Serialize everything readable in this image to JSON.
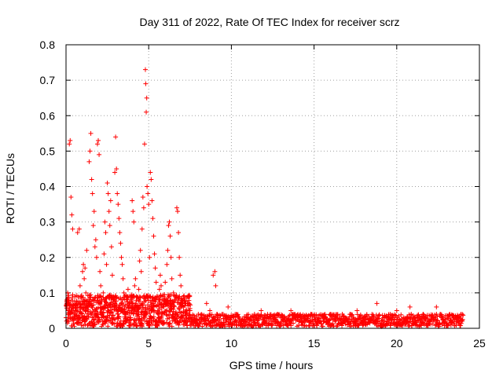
{
  "chart_data": {
    "type": "scatter",
    "title": "Day 311 of 2022, Rate Of TEC Index for receiver scrz",
    "xlabel": "GPS time / hours",
    "ylabel": "ROTI / TECUs",
    "xlim": [
      0,
      25
    ],
    "ylim": [
      0,
      0.8
    ],
    "x_ticks": [
      0,
      5,
      10,
      15,
      20,
      25
    ],
    "y_ticks": [
      0,
      0.1,
      0.2,
      0.3,
      0.4,
      0.5,
      0.6,
      0.7,
      0.8
    ],
    "x_tick_labels": [
      "0",
      "5",
      "10",
      "15",
      "20",
      "25"
    ],
    "y_tick_labels": [
      "0",
      "0.1",
      "0.2",
      "0.3",
      "0.4",
      "0.5",
      "0.6",
      "0.7",
      "0.8"
    ],
    "grid": true,
    "marker": "+",
    "color": "#ff0000",
    "series": [
      {
        "name": "ROTI",
        "points": [
          [
            0.0,
            0.03
          ],
          [
            0.05,
            0.08
          ],
          [
            0.1,
            0.1
          ],
          [
            0.15,
            0.05
          ],
          [
            0.2,
            0.52
          ],
          [
            0.25,
            0.53
          ],
          [
            0.3,
            0.37
          ],
          [
            0.35,
            0.32
          ],
          [
            0.4,
            0.28
          ],
          [
            0.45,
            0.06
          ],
          [
            0.5,
            0.04
          ],
          [
            0.55,
            0.09
          ],
          [
            0.6,
            0.05
          ],
          [
            0.7,
            0.27
          ],
          [
            0.75,
            0.07
          ],
          [
            0.8,
            0.28
          ],
          [
            0.85,
            0.12
          ],
          [
            0.9,
            0.09
          ],
          [
            1.0,
            0.16
          ],
          [
            1.05,
            0.18
          ],
          [
            1.1,
            0.14
          ],
          [
            1.15,
            0.17
          ],
          [
            1.2,
            0.1
          ],
          [
            1.25,
            0.22
          ],
          [
            1.3,
            0.06
          ],
          [
            1.35,
            0.07
          ],
          [
            1.4,
            0.47
          ],
          [
            1.45,
            0.5
          ],
          [
            1.5,
            0.55
          ],
          [
            1.55,
            0.42
          ],
          [
            1.6,
            0.38
          ],
          [
            1.65,
            0.29
          ],
          [
            1.7,
            0.33
          ],
          [
            1.75,
            0.23
          ],
          [
            1.8,
            0.25
          ],
          [
            1.85,
            0.2
          ],
          [
            1.9,
            0.52
          ],
          [
            1.95,
            0.53
          ],
          [
            2.0,
            0.49
          ],
          [
            2.05,
            0.16
          ],
          [
            2.1,
            0.12
          ],
          [
            2.15,
            0.03
          ],
          [
            2.2,
            0.02
          ],
          [
            2.25,
            0.1
          ],
          [
            2.3,
            0.21
          ],
          [
            2.35,
            0.3
          ],
          [
            2.4,
            0.27
          ],
          [
            2.45,
            0.18
          ],
          [
            2.5,
            0.41
          ],
          [
            2.55,
            0.38
          ],
          [
            2.6,
            0.33
          ],
          [
            2.65,
            0.29
          ],
          [
            2.7,
            0.36
          ],
          [
            2.75,
            0.23
          ],
          [
            2.8,
            0.15
          ],
          [
            2.85,
            0.08
          ],
          [
            2.9,
            0.06
          ],
          [
            2.95,
            0.44
          ],
          [
            3.0,
            0.54
          ],
          [
            3.05,
            0.45
          ],
          [
            3.1,
            0.38
          ],
          [
            3.15,
            0.35
          ],
          [
            3.2,
            0.31
          ],
          [
            3.25,
            0.27
          ],
          [
            3.3,
            0.24
          ],
          [
            3.35,
            0.2
          ],
          [
            3.4,
            0.18
          ],
          [
            3.45,
            0.14
          ],
          [
            3.5,
            0.1
          ],
          [
            3.55,
            0.06
          ],
          [
            3.6,
            0.04
          ],
          [
            3.65,
            0.02
          ],
          [
            3.7,
            0.09
          ],
          [
            3.75,
            0.11
          ],
          [
            3.8,
            0.07
          ],
          [
            3.85,
            0.05
          ],
          [
            3.9,
            0.03
          ],
          [
            3.95,
            0.08
          ],
          [
            4.0,
            0.36
          ],
          [
            4.05,
            0.33
          ],
          [
            4.1,
            0.3
          ],
          [
            4.15,
            0.12
          ],
          [
            4.2,
            0.14
          ],
          [
            4.25,
            0.09
          ],
          [
            4.3,
            0.06
          ],
          [
            4.35,
            0.04
          ],
          [
            4.4,
            0.11
          ],
          [
            4.45,
            0.19
          ],
          [
            4.5,
            0.22
          ],
          [
            4.55,
            0.16
          ],
          [
            4.6,
            0.28
          ],
          [
            4.65,
            0.37
          ],
          [
            4.7,
            0.34
          ],
          [
            4.75,
            0.52
          ],
          [
            4.8,
            0.73
          ],
          [
            4.82,
            0.69
          ],
          [
            4.85,
            0.61
          ],
          [
            4.88,
            0.65
          ],
          [
            4.9,
            0.4
          ],
          [
            4.95,
            0.38
          ],
          [
            5.0,
            0.35
          ],
          [
            5.05,
            0.2
          ],
          [
            5.1,
            0.44
          ],
          [
            5.15,
            0.42
          ],
          [
            5.2,
            0.36
          ],
          [
            5.25,
            0.31
          ],
          [
            5.3,
            0.26
          ],
          [
            5.35,
            0.21
          ],
          [
            5.4,
            0.17
          ],
          [
            5.45,
            0.13
          ],
          [
            5.5,
            0.09
          ],
          [
            5.55,
            0.05
          ],
          [
            5.6,
            0.03
          ],
          [
            5.65,
            0.11
          ],
          [
            5.7,
            0.15
          ],
          [
            5.75,
            0.12
          ],
          [
            5.8,
            0.08
          ],
          [
            5.9,
            0.06
          ],
          [
            6.0,
            0.13
          ],
          [
            6.1,
            0.18
          ],
          [
            6.15,
            0.22
          ],
          [
            6.2,
            0.29
          ],
          [
            6.25,
            0.3
          ],
          [
            6.3,
            0.26
          ],
          [
            6.35,
            0.2
          ],
          [
            6.4,
            0.14
          ],
          [
            6.5,
            0.1
          ],
          [
            6.6,
            0.08
          ],
          [
            6.7,
            0.34
          ],
          [
            6.75,
            0.33
          ],
          [
            6.8,
            0.27
          ],
          [
            6.85,
            0.2
          ],
          [
            6.9,
            0.15
          ],
          [
            6.95,
            0.12
          ],
          [
            7.0,
            0.08
          ],
          [
            7.1,
            0.06
          ],
          [
            7.2,
            0.04
          ],
          [
            7.3,
            0.03
          ],
          [
            7.5,
            0.05
          ],
          [
            7.8,
            0.02
          ],
          [
            8.0,
            0.04
          ],
          [
            8.2,
            0.03
          ],
          [
            8.5,
            0.07
          ],
          [
            8.7,
            0.05
          ],
          [
            8.9,
            0.15
          ],
          [
            9.0,
            0.16
          ],
          [
            9.05,
            0.12
          ],
          [
            9.2,
            0.03
          ],
          [
            9.5,
            0.04
          ],
          [
            9.8,
            0.06
          ],
          [
            10.0,
            0.03
          ],
          [
            10.3,
            0.04
          ],
          [
            10.6,
            0.02
          ],
          [
            11.0,
            0.03
          ],
          [
            11.4,
            0.04
          ],
          [
            11.8,
            0.05
          ],
          [
            12.0,
            0.03
          ],
          [
            12.4,
            0.02
          ],
          [
            12.8,
            0.04
          ],
          [
            13.2,
            0.03
          ],
          [
            13.6,
            0.05
          ],
          [
            14.0,
            0.03
          ],
          [
            14.4,
            0.02
          ],
          [
            14.8,
            0.04
          ],
          [
            15.2,
            0.03
          ],
          [
            15.6,
            0.02
          ],
          [
            16.0,
            0.04
          ],
          [
            16.4,
            0.03
          ],
          [
            16.8,
            0.02
          ],
          [
            17.2,
            0.04
          ],
          [
            17.6,
            0.05
          ],
          [
            18.0,
            0.03
          ],
          [
            18.4,
            0.02
          ],
          [
            18.8,
            0.07
          ],
          [
            19.2,
            0.03
          ],
          [
            19.6,
            0.04
          ],
          [
            20.0,
            0.05
          ],
          [
            20.4,
            0.03
          ],
          [
            20.8,
            0.06
          ],
          [
            21.2,
            0.03
          ],
          [
            21.6,
            0.04
          ],
          [
            22.0,
            0.02
          ],
          [
            22.4,
            0.06
          ],
          [
            22.8,
            0.03
          ],
          [
            23.2,
            0.04
          ],
          [
            23.6,
            0.03
          ],
          [
            23.9,
            0.02
          ]
        ],
        "baseline_band": [
          {
            "x_start": 0.0,
            "x_end": 7.5,
            "y_low": 0.0,
            "y_high": 0.09
          },
          {
            "x_start": 7.5,
            "x_end": 24.0,
            "y_low": 0.0,
            "y_high": 0.035
          }
        ]
      }
    ]
  }
}
